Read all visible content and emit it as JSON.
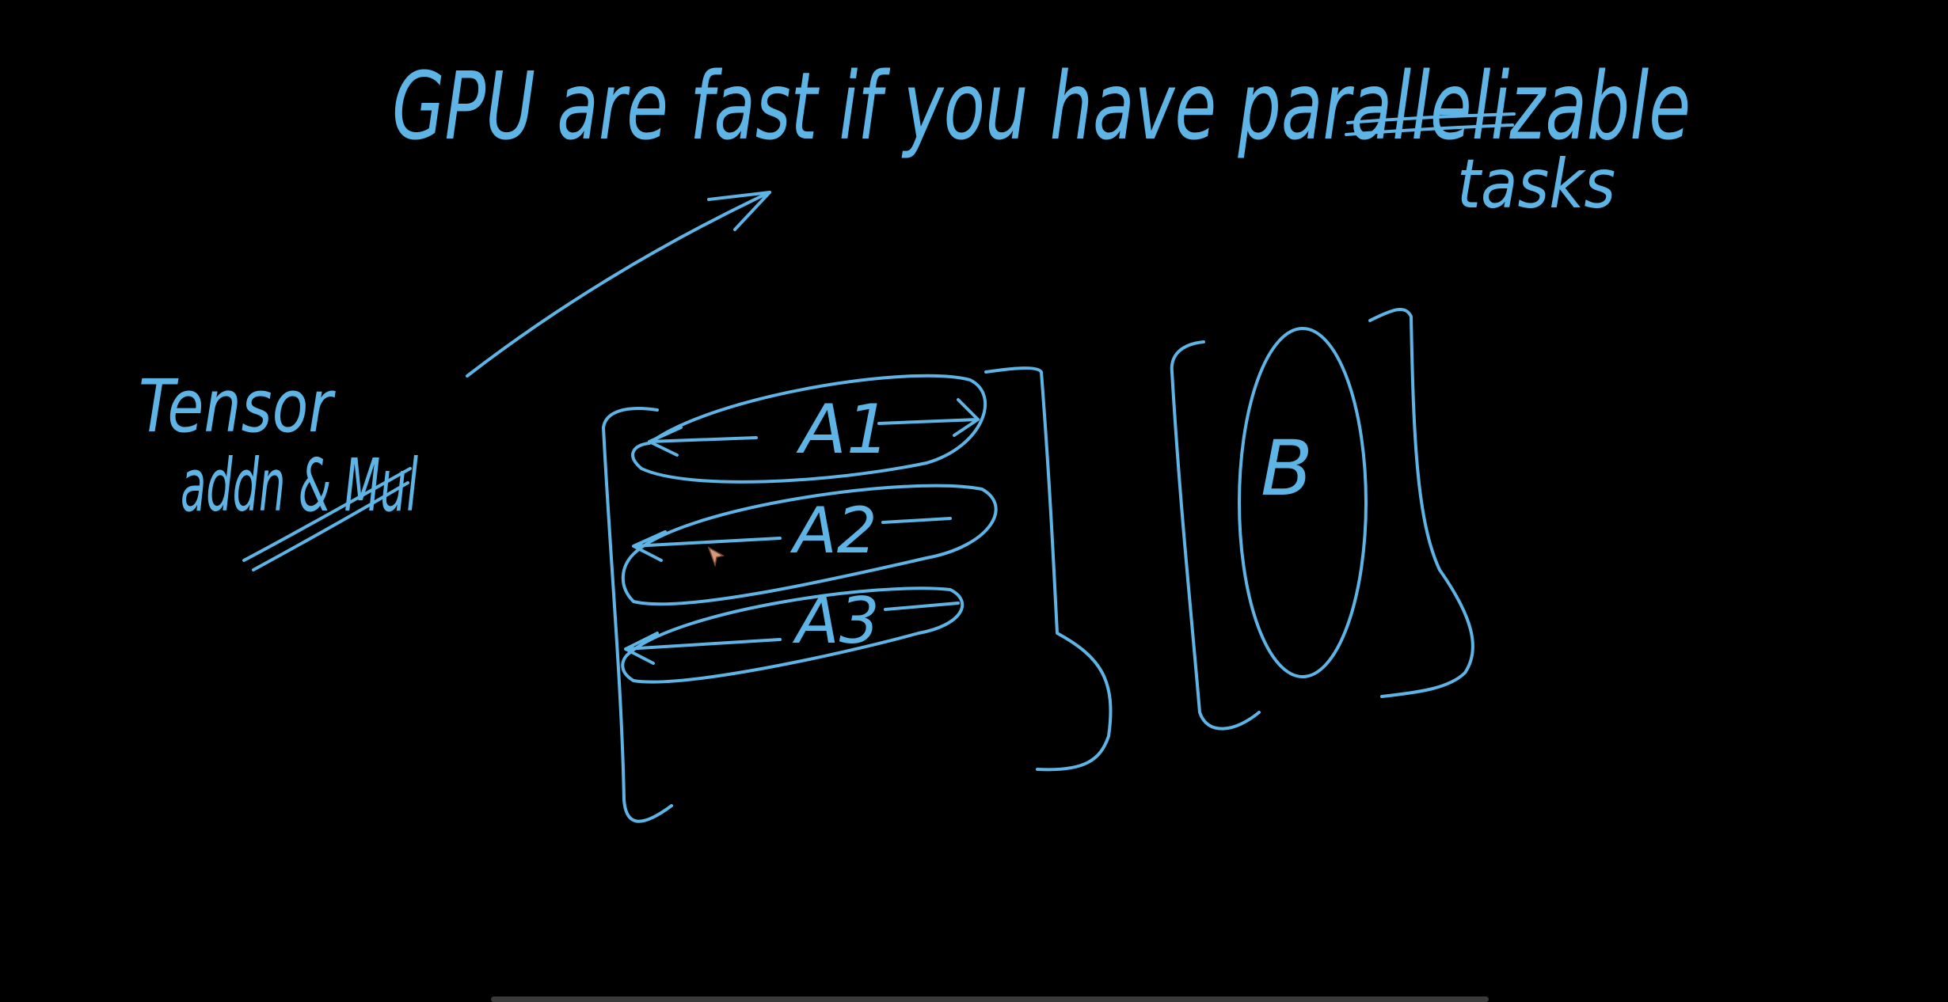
{
  "whiteboard": {
    "ink_color": "#5fb4e6",
    "background_color": "#000000",
    "title_text": "GPU are fast if you have parallelizable",
    "title_continuation": "tasks",
    "side_note_line1": "Tensor",
    "side_note_line2": "addn & Mul",
    "row_labels": [
      "A1",
      "A2",
      "A3"
    ],
    "vector_label": "B"
  },
  "cursor": {
    "icon": "pen-cursor-icon",
    "color": "#d49a7a"
  }
}
